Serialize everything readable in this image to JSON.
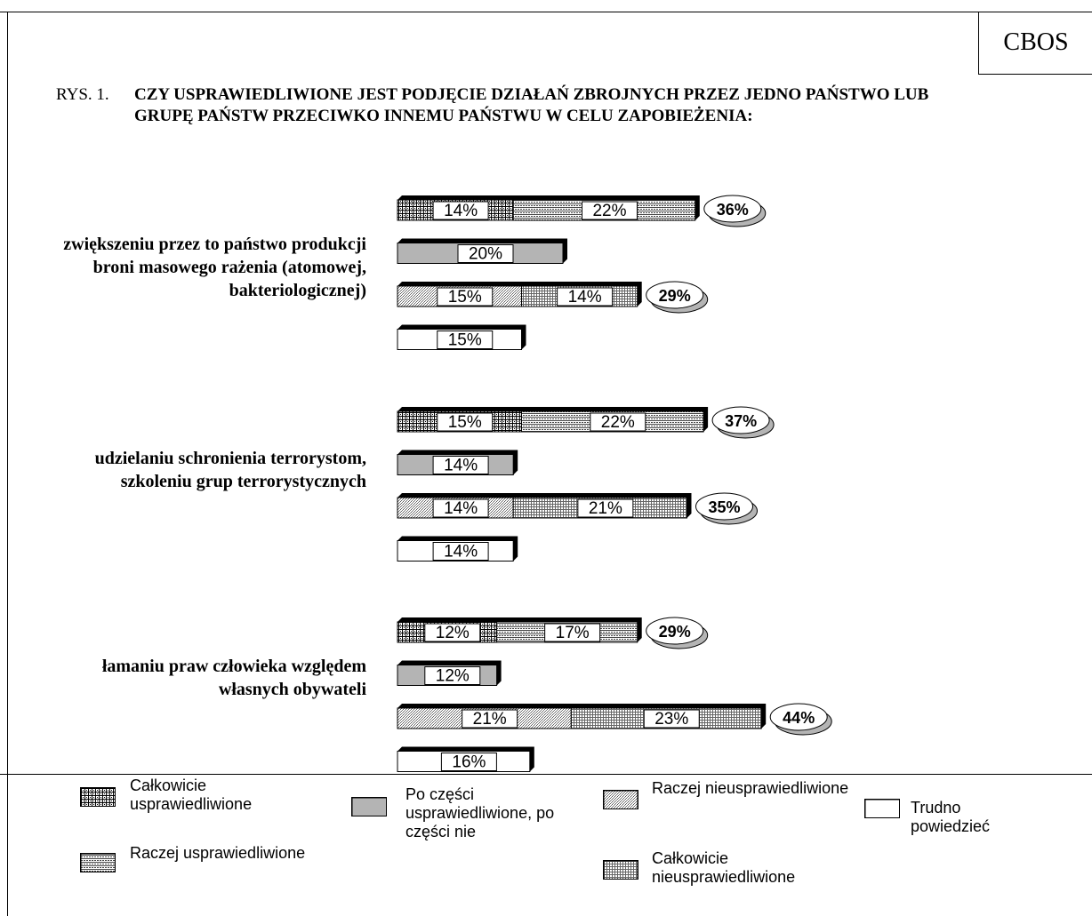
{
  "header": {
    "brand": "CBOS"
  },
  "figure": {
    "label": "RYS. 1.",
    "title": "CZY USPRAWIEDLIWIONE JEST PODJĘCIE DZIAŁAŃ ZBROJNYCH PRZEZ JEDNO PAŃSTWO LUB GRUPĘ PAŃSTW PRZECIWKO INNEMU PAŃSTWU W CELU ZAPOBIEŻENIA:"
  },
  "colors": {
    "part_fill": "#b4b4b4",
    "blank_fill": "#ffffff",
    "shadow": "#000000"
  },
  "chart_data": {
    "type": "bar",
    "orientation": "horizontal",
    "stacked": true,
    "groups": [
      {
        "label": "zwiększeniu przez to państwo produkcji broni masowego rażenia (atomowej, bakteriologicznej)",
        "justified": {
          "total": 36,
          "values": [
            14,
            22
          ]
        },
        "partly": 20,
        "unjustified": {
          "total": 29,
          "values": [
            15,
            14
          ]
        },
        "hard_to_say": 15
      },
      {
        "label": "udzielaniu schronienia terrorystom, szkoleniu grup terrorystycznych",
        "justified": {
          "total": 37,
          "values": [
            15,
            22
          ]
        },
        "partly": 14,
        "unjustified": {
          "total": 35,
          "values": [
            14,
            21
          ]
        },
        "hard_to_say": 14
      },
      {
        "label": "łamaniu praw człowieka względem własnych obywateli",
        "justified": {
          "total": 29,
          "values": [
            12,
            17
          ]
        },
        "partly": 12,
        "unjustified": {
          "total": 44,
          "values": [
            21,
            23
          ]
        },
        "hard_to_say": 16
      }
    ],
    "legend": [
      {
        "key": "fully_justified",
        "label": "Całkowicie usprawiedliwione"
      },
      {
        "key": "rather_justified",
        "label": "Raczej usprawiedliwione"
      },
      {
        "key": "partly",
        "label": "Po części usprawiedliwione, po części nie"
      },
      {
        "key": "rather_unjustified",
        "label": "Raczej nieusprawiedliwione"
      },
      {
        "key": "fully_unjustified",
        "label": "Całkowicie nieusprawiedliwione"
      },
      {
        "key": "hard_to_say",
        "label": "Trudno powiedzieć"
      }
    ]
  }
}
